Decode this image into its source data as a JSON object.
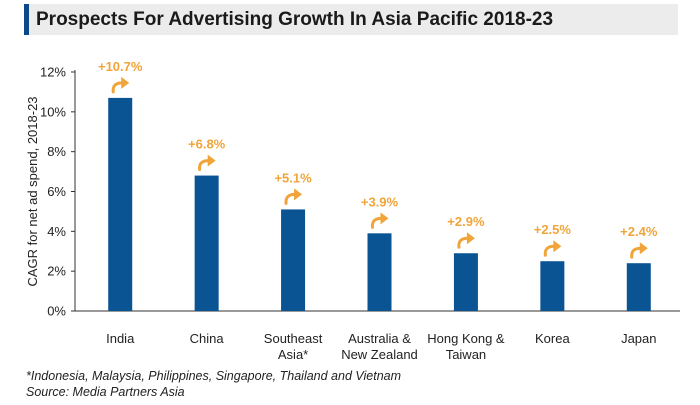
{
  "title": "Prospects For Advertising Growth In Asia Pacific 2018-23",
  "footnote": "*Indonesia, Malaysia, Philippines, Singapore, Thailand and Vietnam",
  "source": "Source: Media Partners Asia",
  "colors": {
    "bar": "#0a5494",
    "label": "#f0a43a",
    "title_accent": "#0a4a8a"
  },
  "chart_data": {
    "type": "bar",
    "title": "Prospects For Advertising Growth In Asia Pacific 2018-23",
    "xlabel": "",
    "ylabel": "CAGR for net ad spend, 2018-23",
    "categories": [
      [
        "India"
      ],
      [
        "China"
      ],
      [
        "Southeast",
        "Asia*"
      ],
      [
        "Australia &",
        "New Zealand"
      ],
      [
        "Hong Kong &",
        "Taiwan"
      ],
      [
        "Korea"
      ],
      [
        "Japan"
      ]
    ],
    "values": [
      10.7,
      6.8,
      5.1,
      3.9,
      2.9,
      2.5,
      2.4
    ],
    "data_labels": [
      "+10.7%",
      "+6.8%",
      "+5.1%",
      "+3.9%",
      "+2.9%",
      "+2.5%",
      "+2.4%"
    ],
    "yticks": [
      "0%",
      "2%",
      "4%",
      "6%",
      "8%",
      "10%",
      "12%"
    ],
    "ylim": [
      0,
      12
    ],
    "grid": false,
    "annotation_icon": "curved-arrow-up-right-icon"
  }
}
